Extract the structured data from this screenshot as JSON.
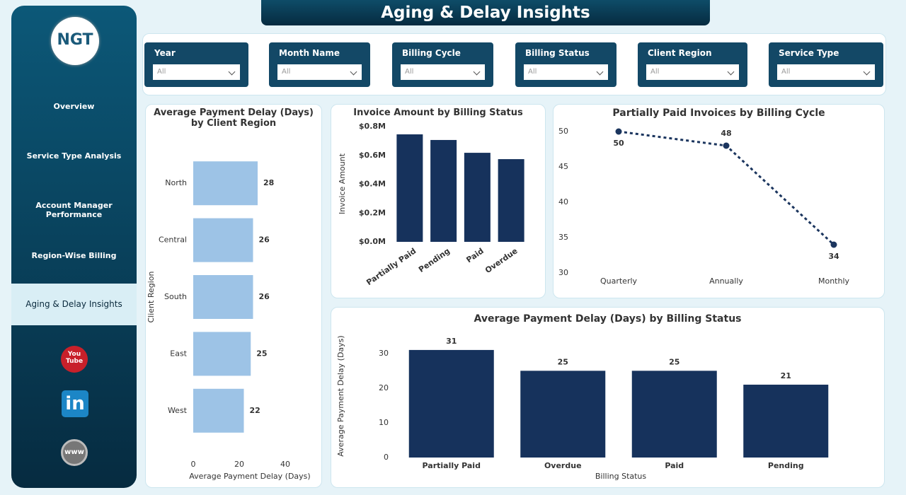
{
  "header": {
    "title": "Aging & Delay Insights"
  },
  "logo": {
    "text": "NGT"
  },
  "nav": {
    "items": [
      "Overview",
      "Service Type Analysis",
      "Account Manager Performance",
      "Region-Wise Billing",
      "Aging & Delay Insights"
    ],
    "active": 4
  },
  "social": {
    "youtube": [
      "You",
      "Tube"
    ],
    "linkedin": "in",
    "web": "www"
  },
  "filters": [
    {
      "label": "Year",
      "value": "All"
    },
    {
      "label": "Month Name",
      "value": "All"
    },
    {
      "label": "Billing Cycle",
      "value": "All"
    },
    {
      "label": "Billing Status",
      "value": "All"
    },
    {
      "label": "Client Region",
      "value": "All"
    },
    {
      "label": "Service Type",
      "value": "All"
    }
  ],
  "chart_data": [
    {
      "type": "bar",
      "orientation": "horizontal",
      "title": "Average Payment Delay (Days) by Client Region",
      "categories": [
        "North",
        "Central",
        "South",
        "East",
        "West"
      ],
      "values": [
        28,
        26,
        26,
        25,
        22
      ],
      "color": "#9dc3e6",
      "xlim": [
        0,
        40
      ],
      "xticks": [
        0,
        20,
        40
      ],
      "xlabel": "Average Payment Delay (Days)",
      "ylabel": "Client Region",
      "data_labels": true,
      "grid": false
    },
    {
      "type": "bar",
      "orientation": "vertical",
      "title": "Invoice Amount by Billing Status",
      "categories": [
        "Partially Paid",
        "Pending",
        "Paid",
        "Overdue"
      ],
      "values": [
        746000,
        707000,
        618000,
        574000
      ],
      "color": "#16325c",
      "ylim": [
        0,
        800000
      ],
      "yticks": [
        {
          "value": 0,
          "label": "$0.0M"
        },
        {
          "value": 200000,
          "label": "$0.2M"
        },
        {
          "value": 400000,
          "label": "$0.4M"
        },
        {
          "value": 600000,
          "label": "$0.6M"
        },
        {
          "value": 800000,
          "label": "$0.8M"
        }
      ],
      "ylabel": "Invoice Amount",
      "data_labels": false,
      "grid": false
    },
    {
      "type": "line",
      "title": "Partially Paid Invoices by Billing Cycle",
      "categories": [
        "Quarterly",
        "Annually",
        "Monthly"
      ],
      "values": [
        50,
        48,
        34
      ],
      "color": "#1b355e",
      "ylim": [
        30,
        50
      ],
      "yticks": [
        30,
        35,
        40,
        45,
        50
      ],
      "dashed": true,
      "data_labels": true,
      "grid": false
    },
    {
      "type": "bar",
      "orientation": "vertical",
      "title": "Average Payment Delay (Days) by Billing Status",
      "categories": [
        "Partially Paid",
        "Overdue",
        "Paid",
        "Pending"
      ],
      "values": [
        31,
        25,
        25,
        21
      ],
      "color": "#16325c",
      "ylim": [
        0,
        32
      ],
      "yticks": [
        0,
        10,
        20,
        30
      ],
      "xlabel": "Billing Status",
      "ylabel": "Average Payment Delay (Days)",
      "data_labels": true,
      "grid": false
    }
  ]
}
